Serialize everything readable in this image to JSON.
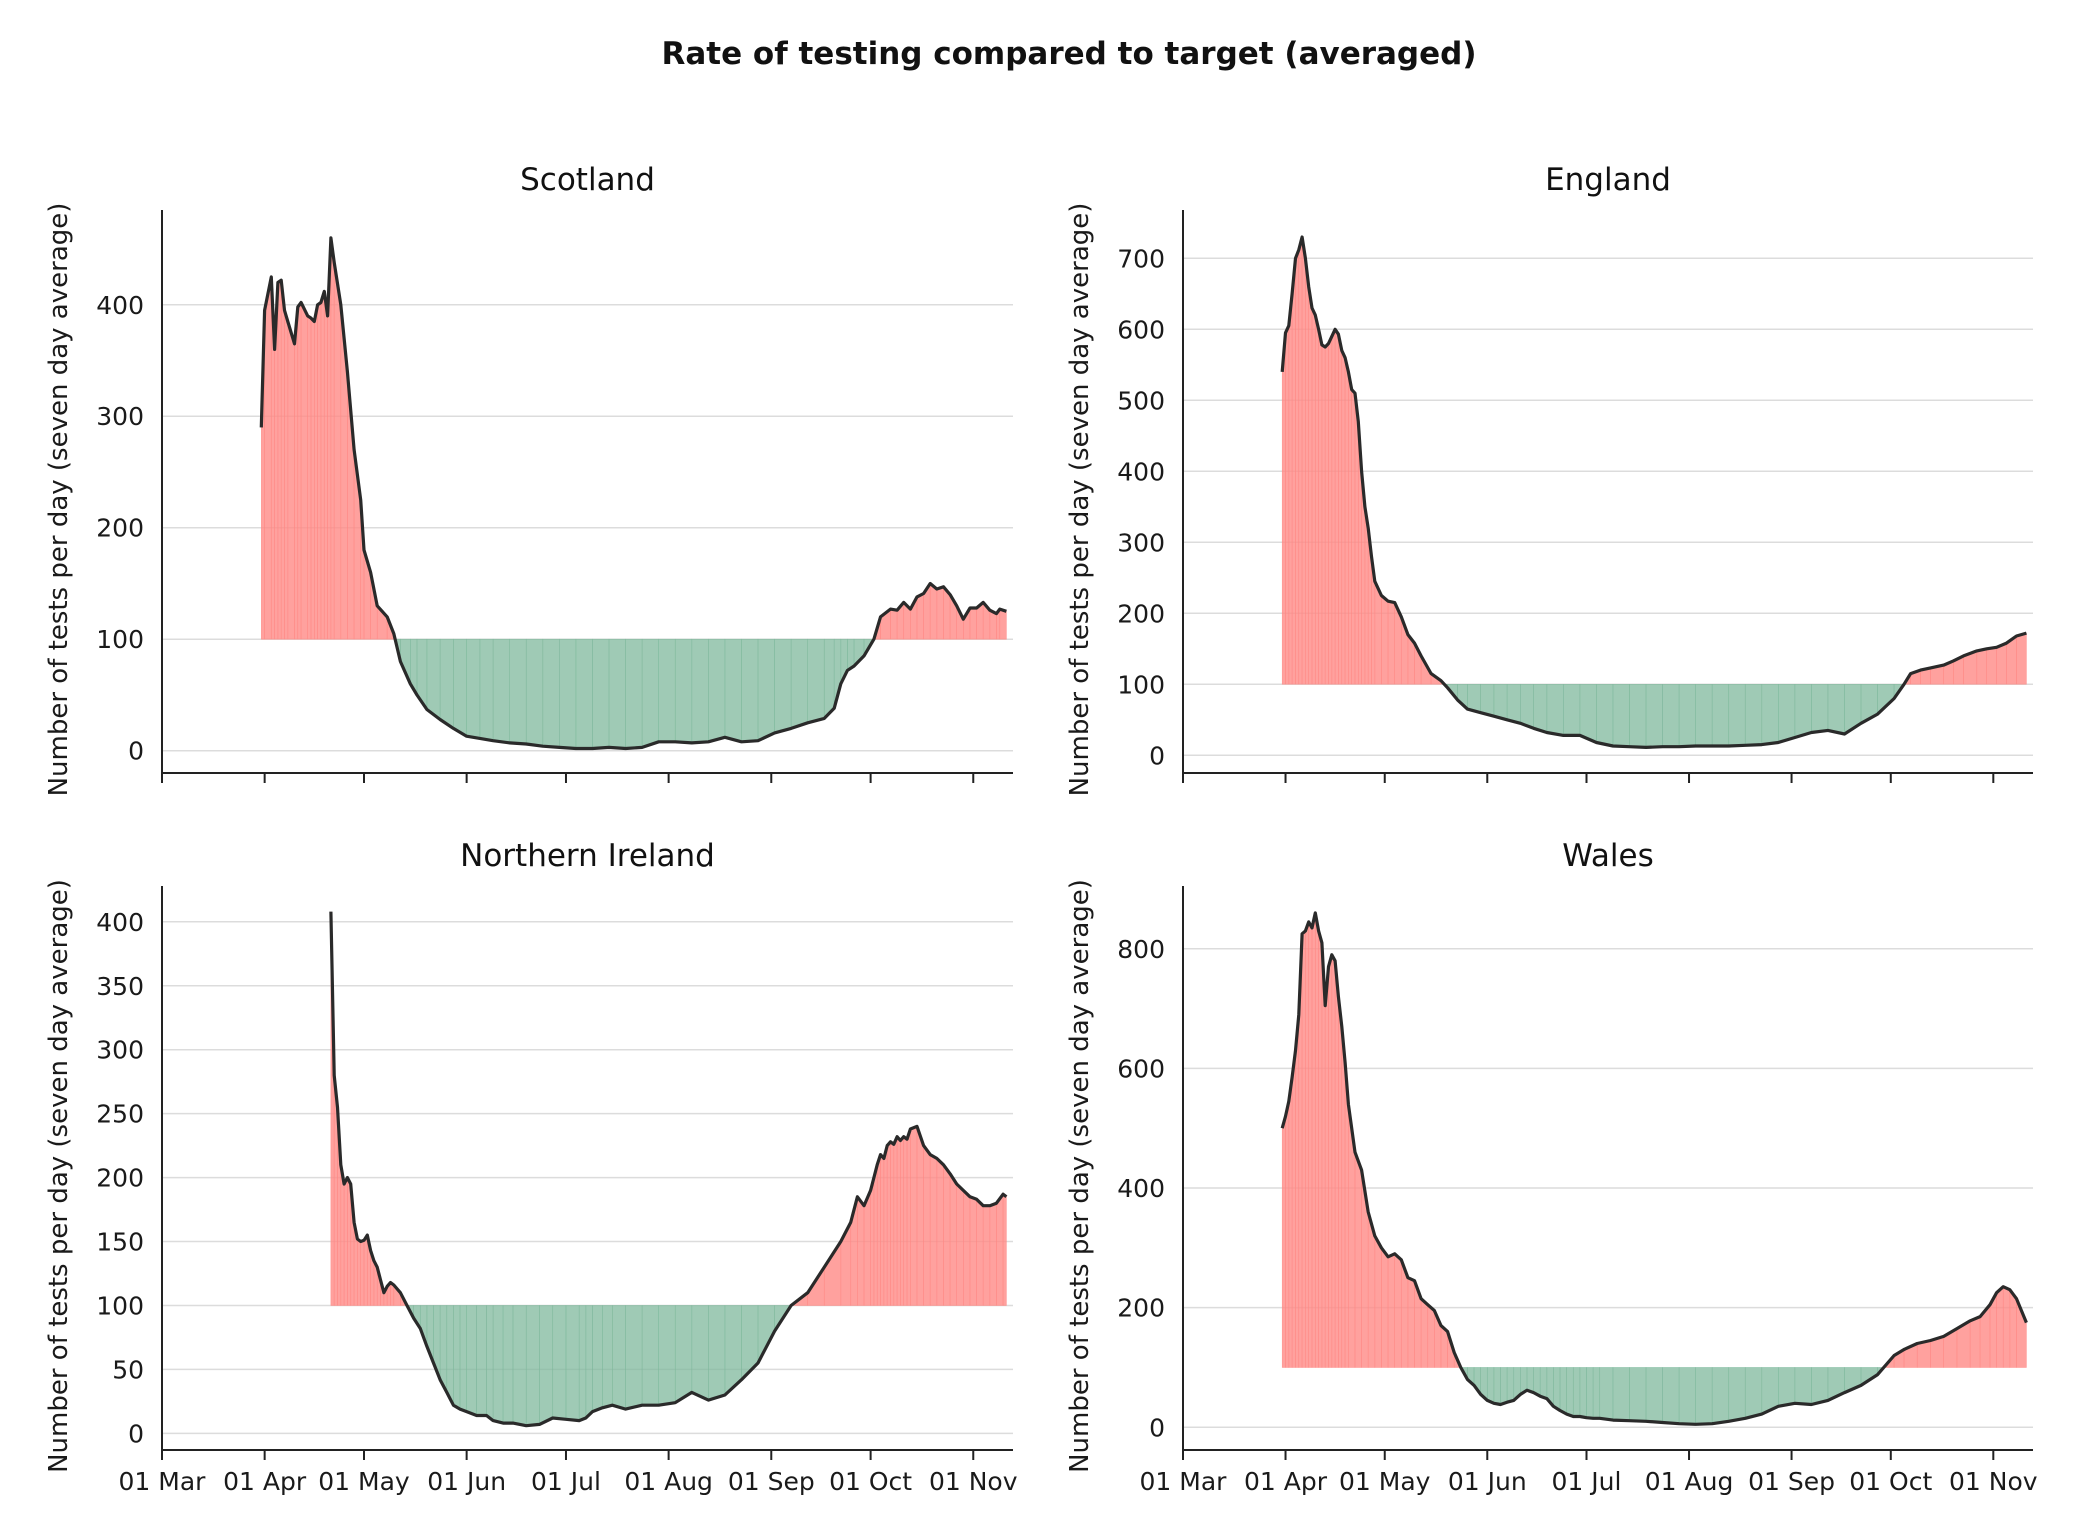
{
  "figure": {
    "title": "Rate of testing compared to target (averaged)"
  },
  "colors": {
    "above_target": "#ff8a86",
    "below_target": "#7fb89c",
    "line": "#2a2a2a",
    "grid": "#dcdcdc"
  },
  "chart_data": [
    {
      "type": "area",
      "title": "Scotland",
      "ylabel": "Number of tests per day (seven day average)",
      "xlabel": "",
      "target": 100,
      "x_tick_labels": [
        "01 Mar",
        "01 Apr",
        "01 May",
        "01 Jun",
        "01 Jul",
        "01 Aug",
        "01 Sep",
        "01 Oct",
        "01 Nov"
      ],
      "x_tick_days": [
        0,
        31,
        61,
        92,
        122,
        153,
        184,
        214,
        245
      ],
      "xlim": [
        0,
        257
      ],
      "ylim": [
        -20,
        485
      ],
      "yticks": [
        0,
        100,
        200,
        300,
        400
      ],
      "x_days": [
        30,
        31,
        33,
        34,
        35,
        36,
        37,
        38,
        40,
        41,
        42,
        44,
        45,
        46,
        47,
        48,
        49,
        50,
        51,
        52,
        54,
        56,
        58,
        60,
        61,
        63,
        65,
        68,
        70,
        72,
        75,
        77,
        80,
        84,
        88,
        92,
        96,
        100,
        105,
        110,
        115,
        120,
        125,
        130,
        135,
        140,
        145,
        150,
        155,
        160,
        165,
        170,
        175,
        180,
        185,
        190,
        195,
        200,
        203,
        205,
        207,
        209,
        212,
        215,
        217,
        220,
        222,
        224,
        226,
        228,
        230,
        232,
        234,
        236,
        238,
        240,
        242,
        244,
        246,
        248,
        250,
        252,
        253,
        255
      ],
      "values": [
        290,
        395,
        425,
        360,
        420,
        422,
        395,
        385,
        365,
        398,
        402,
        390,
        388,
        385,
        400,
        402,
        412,
        390,
        460,
        438,
        400,
        340,
        270,
        225,
        180,
        160,
        130,
        120,
        105,
        80,
        60,
        50,
        37,
        28,
        20,
        13,
        11,
        9,
        7,
        6,
        4,
        3,
        2,
        2,
        3,
        2,
        3,
        8,
        8,
        7,
        8,
        12,
        8,
        9,
        16,
        20,
        25,
        29,
        38,
        60,
        72,
        76,
        85,
        100,
        120,
        127,
        126,
        133,
        127,
        138,
        141,
        150,
        145,
        147,
        140,
        130,
        118,
        128,
        128,
        133,
        126,
        123,
        127,
        125
      ]
    },
    {
      "type": "area",
      "title": "England",
      "ylabel": "Number of tests per day (seven day average)",
      "xlabel": "",
      "target": 100,
      "x_tick_labels": [
        "01 Mar",
        "01 Apr",
        "01 May",
        "01 Jun",
        "01 Jul",
        "01 Aug",
        "01 Sep",
        "01 Oct",
        "01 Nov"
      ],
      "x_tick_days": [
        0,
        31,
        61,
        92,
        122,
        153,
        184,
        214,
        245
      ],
      "xlim": [
        0,
        257
      ],
      "ylim": [
        -25,
        768
      ],
      "yticks": [
        0,
        100,
        200,
        300,
        400,
        500,
        600,
        700
      ],
      "x_days": [
        30,
        31,
        32,
        33,
        34,
        35,
        36,
        37,
        38,
        39,
        40,
        41,
        42,
        43,
        44,
        45,
        46,
        47,
        48,
        49,
        50,
        51,
        52,
        53,
        54,
        55,
        56,
        57,
        58,
        60,
        62,
        64,
        66,
        68,
        70,
        72,
        75,
        78,
        80,
        83,
        86,
        90,
        94,
        98,
        102,
        106,
        110,
        115,
        120,
        125,
        130,
        135,
        140,
        145,
        150,
        155,
        160,
        165,
        170,
        175,
        180,
        185,
        190,
        195,
        200,
        205,
        210,
        215,
        218,
        220,
        223,
        226,
        230,
        233,
        236,
        240,
        243,
        246,
        249,
        252,
        255
      ],
      "values": [
        540,
        595,
        605,
        650,
        700,
        712,
        730,
        700,
        660,
        630,
        620,
        600,
        578,
        575,
        580,
        590,
        600,
        593,
        570,
        560,
        540,
        515,
        510,
        470,
        400,
        350,
        320,
        280,
        245,
        225,
        217,
        215,
        195,
        170,
        158,
        140,
        115,
        105,
        95,
        78,
        65,
        60,
        55,
        50,
        45,
        38,
        32,
        28,
        28,
        18,
        13,
        12,
        11,
        12,
        12,
        13,
        13,
        13,
        14,
        15,
        18,
        25,
        32,
        35,
        30,
        45,
        58,
        80,
        100,
        115,
        120,
        123,
        127,
        133,
        140,
        147,
        150,
        152,
        158,
        168,
        172
      ]
    },
    {
      "type": "area",
      "title": "Northern Ireland",
      "ylabel": "Number of tests per day (seven day average)",
      "xlabel": "",
      "target": 100,
      "x_tick_labels": [
        "01 Mar",
        "01 Apr",
        "01 May",
        "01 Jun",
        "01 Jul",
        "01 Aug",
        "01 Sep",
        "01 Oct",
        "01 Nov"
      ],
      "x_tick_days": [
        0,
        31,
        61,
        92,
        122,
        153,
        184,
        214,
        245
      ],
      "xlim": [
        0,
        257
      ],
      "ylim": [
        -13,
        428
      ],
      "yticks": [
        0,
        50,
        100,
        150,
        200,
        250,
        300,
        350,
        400
      ],
      "x_days": [
        51,
        52,
        53,
        54,
        55,
        56,
        57,
        58,
        59,
        60,
        61,
        62,
        63,
        64,
        65,
        66,
        67,
        68,
        69,
        70,
        72,
        74,
        76,
        78,
        80,
        82,
        84,
        86,
        88,
        90,
        92,
        95,
        98,
        100,
        103,
        106,
        110,
        114,
        118,
        122,
        126,
        128,
        130,
        133,
        136,
        140,
        145,
        150,
        155,
        160,
        165,
        170,
        175,
        180,
        185,
        190,
        195,
        200,
        205,
        208,
        210,
        212,
        214,
        215,
        216,
        217,
        218,
        219,
        220,
        221,
        222,
        223,
        224,
        225,
        226,
        228,
        230,
        232,
        234,
        236,
        238,
        240,
        242,
        244,
        246,
        248,
        250,
        252,
        254,
        255
      ],
      "values": [
        408,
        280,
        255,
        210,
        195,
        200,
        195,
        165,
        152,
        150,
        151,
        155,
        143,
        135,
        130,
        120,
        110,
        115,
        118,
        116,
        110,
        100,
        90,
        82,
        68,
        55,
        42,
        32,
        22,
        19,
        17,
        14,
        14,
        10,
        8,
        8,
        6,
        7,
        12,
        11,
        10,
        12,
        17,
        20,
        22,
        19,
        22,
        22,
        24,
        32,
        26,
        30,
        42,
        55,
        80,
        100,
        110,
        130,
        150,
        165,
        185,
        178,
        190,
        200,
        210,
        218,
        215,
        225,
        228,
        226,
        232,
        229,
        232,
        230,
        238,
        240,
        225,
        218,
        215,
        210,
        203,
        195,
        190,
        185,
        183,
        178,
        178,
        180,
        187,
        185
      ]
    },
    {
      "type": "area",
      "title": "Wales",
      "ylabel": "Number of tests per day (seven day average)",
      "xlabel": "",
      "target": 100,
      "x_tick_labels": [
        "01 Mar",
        "01 Apr",
        "01 May",
        "01 Jun",
        "01 Jul",
        "01 Aug",
        "01 Sep",
        "01 Oct",
        "01 Nov"
      ],
      "x_tick_days": [
        0,
        31,
        61,
        92,
        122,
        153,
        184,
        214,
        245
      ],
      "xlim": [
        0,
        257
      ],
      "ylim": [
        -38,
        905
      ],
      "yticks": [
        0,
        200,
        400,
        600,
        800
      ],
      "x_days": [
        30,
        31,
        32,
        33,
        34,
        35,
        36,
        37,
        38,
        39,
        40,
        41,
        42,
        43,
        44,
        45,
        46,
        47,
        48,
        49,
        50,
        52,
        54,
        56,
        58,
        60,
        62,
        64,
        66,
        68,
        70,
        72,
        74,
        76,
        78,
        80,
        82,
        84,
        86,
        88,
        90,
        92,
        94,
        96,
        98,
        100,
        102,
        104,
        106,
        108,
        110,
        112,
        114,
        116,
        118,
        120,
        122,
        124,
        126,
        130,
        135,
        140,
        145,
        150,
        155,
        160,
        165,
        170,
        175,
        180,
        185,
        190,
        195,
        200,
        205,
        210,
        215,
        218,
        222,
        226,
        230,
        234,
        238,
        241,
        244,
        246,
        248,
        250,
        252,
        255
      ],
      "values": [
        500,
        520,
        545,
        585,
        630,
        690,
        825,
        830,
        845,
        835,
        860,
        830,
        810,
        705,
        770,
        790,
        780,
        720,
        670,
        610,
        540,
        460,
        430,
        360,
        320,
        300,
        285,
        290,
        280,
        250,
        245,
        215,
        205,
        195,
        170,
        160,
        125,
        100,
        80,
        70,
        55,
        45,
        40,
        38,
        42,
        45,
        55,
        62,
        58,
        52,
        48,
        35,
        28,
        22,
        18,
        18,
        16,
        15,
        15,
        12,
        11,
        10,
        8,
        6,
        5,
        6,
        10,
        15,
        22,
        35,
        40,
        38,
        45,
        58,
        70,
        88,
        120,
        130,
        140,
        145,
        152,
        165,
        178,
        185,
        205,
        225,
        235,
        230,
        215,
        175
      ]
    }
  ]
}
